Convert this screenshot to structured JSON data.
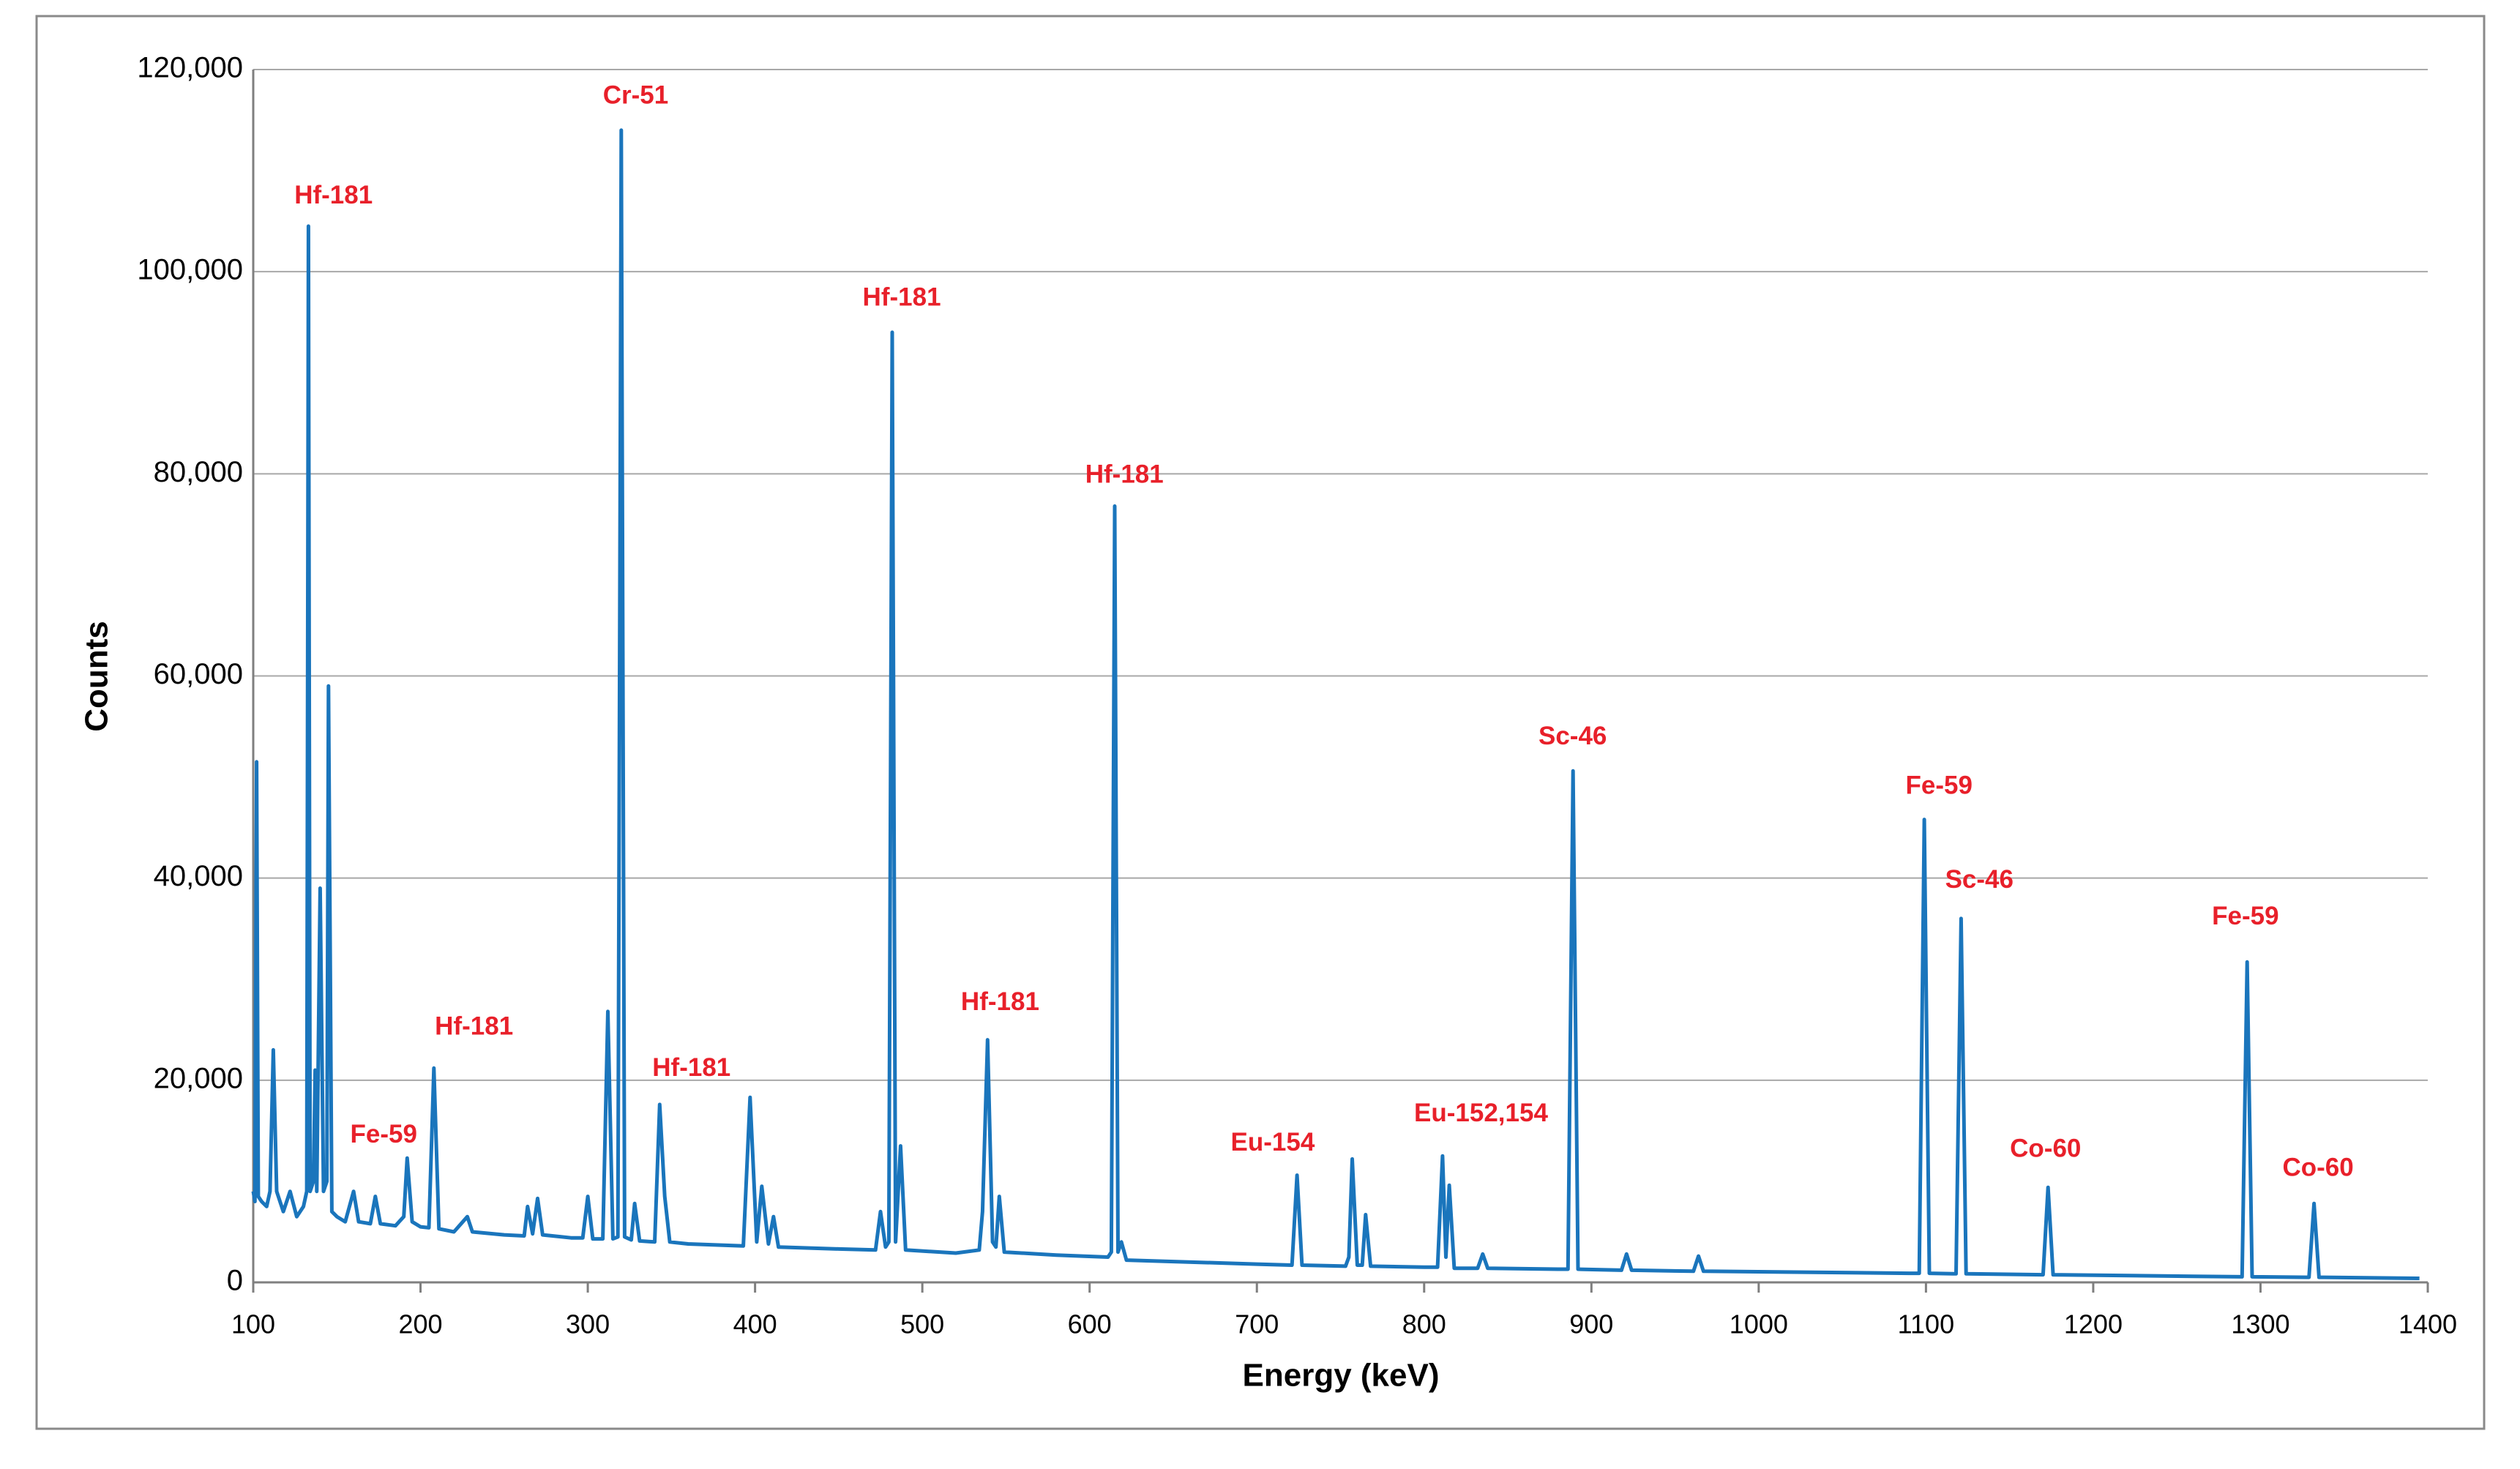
{
  "chart_data": {
    "type": "line",
    "x_label": "Energy (keV)",
    "y_label": "Counts",
    "color": "#1a75bc",
    "grid": true,
    "xlim": [
      100,
      1400
    ],
    "ylim": [
      0,
      120000
    ],
    "xticks": [
      100,
      200,
      300,
      400,
      500,
      600,
      700,
      800,
      900,
      1000,
      1100,
      1200,
      1300,
      1400
    ],
    "yticks": [
      0,
      {
        "value": 20000,
        "label": "20,000"
      },
      {
        "value": 40000,
        "label": "40,000"
      },
      {
        "value": 60000,
        "label": "60,000"
      },
      {
        "value": 80000,
        "label": "80,000"
      },
      {
        "value": 100000,
        "label": "100,000"
      },
      {
        "value": 120000,
        "label": "120,000"
      }
    ],
    "x": [
      100,
      101,
      102,
      103,
      105,
      108,
      110,
      112,
      114,
      118,
      122,
      126,
      130,
      132,
      133,
      134,
      136,
      137,
      138,
      140,
      142,
      144,
      145,
      147,
      150,
      155,
      160,
      163,
      170,
      173,
      176,
      185,
      190,
      192,
      195,
      200,
      205,
      208,
      211,
      220,
      228,
      231,
      250,
      262,
      264,
      267,
      270,
      273,
      290,
      297,
      300,
      303,
      309,
      312,
      315,
      318,
      320,
      322,
      326,
      328,
      331,
      340,
      343,
      346,
      349,
      360,
      393,
      397,
      401,
      404,
      408,
      411,
      414,
      450,
      472,
      475,
      478,
      480,
      482,
      484,
      487,
      490,
      520,
      534,
      536,
      539,
      542,
      544,
      546,
      549,
      580,
      611,
      613,
      615,
      617,
      619,
      622,
      700,
      721,
      724,
      727,
      753,
      755,
      757,
      760,
      763,
      765,
      768,
      800,
      808,
      811,
      813,
      815,
      818,
      832,
      835,
      838,
      880,
      886,
      889,
      892,
      918,
      921,
      924,
      961,
      964,
      967,
      1090,
      1096,
      1099,
      1102,
      1118,
      1121,
      1124,
      1170,
      1173,
      1176,
      1260,
      1289,
      1292,
      1295,
      1329,
      1332,
      1335,
      1395
    ],
    "values": [
      9000,
      8000,
      51500,
      8500,
      8000,
      7500,
      9000,
      23000,
      9000,
      7000,
      9000,
      6500,
      7500,
      9000,
      104500,
      9000,
      10000,
      21000,
      9000,
      39000,
      9000,
      10000,
      59000,
      7000,
      6500,
      6000,
      9000,
      6000,
      5800,
      8500,
      5800,
      5600,
      6500,
      12300,
      6000,
      5500,
      5400,
      21200,
      5300,
      5000,
      6500,
      5000,
      4700,
      4600,
      7500,
      4800,
      8300,
      4700,
      4400,
      4400,
      8500,
      4300,
      4300,
      26800,
      4300,
      4500,
      114000,
      4500,
      4200,
      7800,
      4100,
      4000,
      17600,
      8500,
      4000,
      3800,
      3600,
      18300,
      4000,
      9500,
      3800,
      6500,
      3500,
      3300,
      3200,
      7000,
      3500,
      4000,
      94000,
      4000,
      13500,
      3200,
      2900,
      3200,
      7000,
      24000,
      4000,
      3500,
      8500,
      3000,
      2700,
      2500,
      3000,
      76800,
      3000,
      4000,
      2200,
      1800,
      1700,
      10600,
      1700,
      1600,
      2500,
      12200,
      1700,
      1700,
      6700,
      1600,
      1500,
      1500,
      12500,
      2500,
      9600,
      1400,
      1400,
      2800,
      1400,
      1300,
      1300,
      50600,
      1300,
      1200,
      2800,
      1200,
      1100,
      2600,
      1100,
      900,
      900,
      45800,
      900,
      850,
      36000,
      850,
      750,
      9400,
      750,
      600,
      550,
      31700,
      550,
      500,
      7800,
      500,
      400
    ],
    "annotations": [
      {
        "text": "Hf-181",
        "x": 148,
        "y": 107400
      },
      {
        "text": "Cr-51",
        "x": 328.6,
        "y": 117300
      },
      {
        "text": "Hf-181",
        "x": 487.7,
        "y": 97300
      },
      {
        "text": "Hf-181",
        "x": 620.8,
        "y": 79800
      },
      {
        "text": "Hf-181",
        "x": 232,
        "y": 25200
      },
      {
        "text": "Fe-59",
        "x": 178,
        "y": 14500
      },
      {
        "text": "Hf-181",
        "x": 362,
        "y": 21100
      },
      {
        "text": "Hf-181",
        "x": 546.5,
        "y": 27600
      },
      {
        "text": "Eu-154",
        "x": 709.5,
        "y": 13700
      },
      {
        "text": "Eu-152,154",
        "x": 834,
        "y": 16600
      },
      {
        "text": "Sc-46",
        "x": 888.8,
        "y": 53900
      },
      {
        "text": "Fe-59",
        "x": 1107.8,
        "y": 49000
      },
      {
        "text": "Sc-46",
        "x": 1131.9,
        "y": 39700
      },
      {
        "text": "Co-60",
        "x": 1171.5,
        "y": 13100
      },
      {
        "text": "Fe-59",
        "x": 1291,
        "y": 36100
      },
      {
        "text": "Co-60",
        "x": 1334.4,
        "y": 11200
      }
    ]
  }
}
